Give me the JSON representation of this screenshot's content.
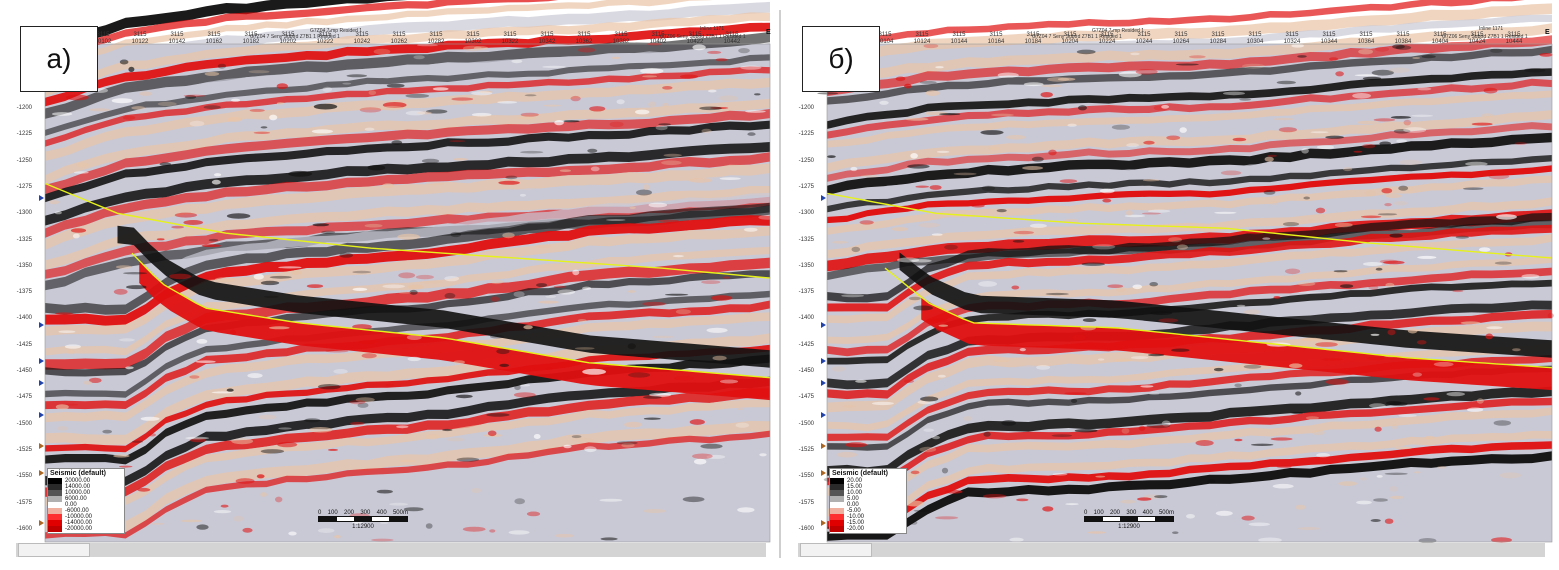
{
  "panels": [
    {
      "tag": "а)",
      "east": "E",
      "inline": "Inline 1171",
      "col_prefix": "3115",
      "xlines": [
        "10102",
        "10122",
        "10142",
        "10162",
        "10182",
        "10202",
        "10222",
        "10242",
        "10262",
        "10282",
        "10302",
        "10322",
        "10342",
        "10362",
        "10382",
        "10402",
        "10422",
        "10442"
      ],
      "wells": [
        "G7Z04 7-mp Resided 1",
        "G7Z04 7 Seny Subtrd Z7B1 1 Resided 1",
        "G7Z06 Seny Subtrd Z7B1 1 Resided 1"
      ],
      "y_labels": [
        "-1200",
        "-1225",
        "-1250",
        "-1275",
        "-1300",
        "-1325",
        "-1350",
        "-1375",
        "-1400",
        "-1425",
        "-1450",
        "-1475",
        "-1500",
        "-1525",
        "-1550",
        "-1575",
        "-1600"
      ],
      "legend": {
        "title": "Seismic (default)",
        "values": [
          "20000.00",
          "14000.00",
          "10000.00",
          "6000.00",
          "0.00",
          "-6000.00",
          "-10000.00",
          "-14000.00",
          "-20000.00"
        ]
      },
      "scale": {
        "ticks": [
          "0",
          "100",
          "200",
          "300",
          "400",
          "500m"
        ],
        "ratio": "1:12900"
      },
      "horizon_top": [
        [
          0.0,
          0.72
        ],
        [
          0.1,
          0.66
        ],
        [
          0.25,
          0.62
        ],
        [
          0.45,
          0.59
        ],
        [
          0.65,
          0.57
        ],
        [
          0.85,
          0.55
        ],
        [
          1.0,
          0.53
        ]
      ],
      "horizon_bottom": [
        [
          0.12,
          0.58
        ],
        [
          0.16,
          0.52
        ],
        [
          0.22,
          0.47
        ],
        [
          0.35,
          0.44
        ],
        [
          0.55,
          0.41
        ],
        [
          0.75,
          0.36
        ],
        [
          1.0,
          0.33
        ]
      ]
    },
    {
      "tag": "б)",
      "east": "E",
      "inline": "Inline 1171",
      "col_prefix": "3115",
      "xlines": [
        "10104",
        "10124",
        "10144",
        "10164",
        "10184",
        "10204",
        "10224",
        "10244",
        "10264",
        "10284",
        "10304",
        "10324",
        "10344",
        "10364",
        "10384",
        "10404",
        "10424",
        "10444"
      ],
      "wells": [
        "G7Z04 7-mp Resided 1",
        "G7Z04 7 Seny Subtrd Z7B1 1 Resided 1",
        "G7Z06 Seny Subtrd Z7B1 1 Resided 1"
      ],
      "y_labels": [
        "-1200",
        "-1225",
        "-1250",
        "-1275",
        "-1300",
        "-1325",
        "-1350",
        "-1375",
        "-1400",
        "-1425",
        "-1450",
        "-1475",
        "-1500",
        "-1525",
        "-1550",
        "-1575",
        "-1600"
      ],
      "legend": {
        "title": "Seismic (default)",
        "values": [
          "20.00",
          "15.00",
          "10.00",
          "5.00",
          "0.00",
          "-5.00",
          "-10.00",
          "-15.00",
          "-20.00"
        ]
      },
      "scale": {
        "ticks": [
          "0",
          "100",
          "200",
          "300",
          "400",
          "500m"
        ],
        "ratio": "1:12900"
      },
      "horizon_top": [
        [
          0.0,
          0.7
        ],
        [
          0.15,
          0.66
        ],
        [
          0.35,
          0.64
        ],
        [
          0.55,
          0.63
        ],
        [
          0.75,
          0.6
        ],
        [
          1.0,
          0.57
        ]
      ],
      "horizon_bottom": [
        [
          0.08,
          0.55
        ],
        [
          0.14,
          0.48
        ],
        [
          0.2,
          0.44
        ],
        [
          0.4,
          0.43
        ],
        [
          0.6,
          0.4
        ],
        [
          0.8,
          0.37
        ],
        [
          1.0,
          0.35
        ]
      ]
    }
  ],
  "colors": {
    "seismic_positive": "#e01010",
    "seismic_negative": "#111111",
    "seismic_mid": "#c9c9d6",
    "seismic_light": "#e9c4a6",
    "horizon": "#e6f21a"
  }
}
